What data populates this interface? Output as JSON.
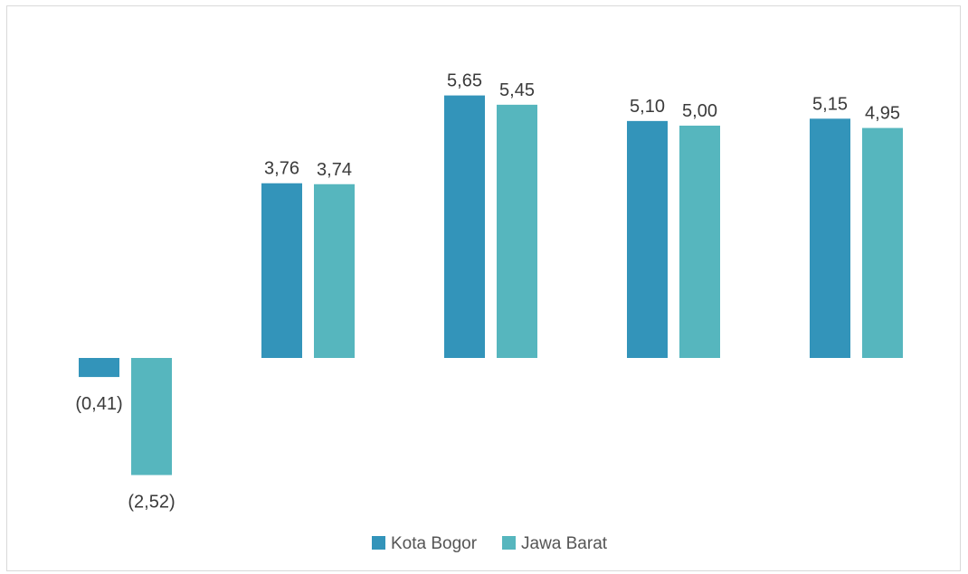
{
  "chart_data": {
    "type": "bar",
    "categories": [
      "",
      "",
      "",
      "",
      ""
    ],
    "series": [
      {
        "name": "Kota Bogor",
        "color": "#3394ba",
        "values": [
          -0.41,
          3.76,
          5.65,
          5.1,
          5.15
        ],
        "labels": [
          "(0,41)",
          "3,76",
          "5,65",
          "5,10",
          "5,15"
        ]
      },
      {
        "name": "Jawa Barat",
        "color": "#56b6be",
        "values": [
          -2.52,
          3.74,
          5.45,
          5.0,
          4.95
        ],
        "labels": [
          "(2,52)",
          "3,74",
          "5,45",
          "5,00",
          "4,95"
        ]
      }
    ],
    "grid": false,
    "legend": "bottom"
  }
}
